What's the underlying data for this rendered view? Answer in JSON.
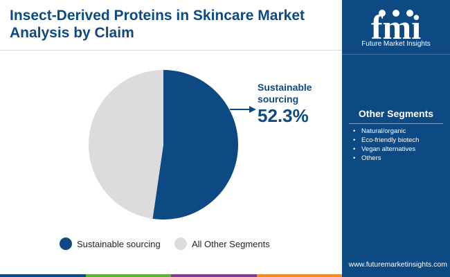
{
  "title": "Insect-Derived Proteins in Skincare Market Analysis by Claim",
  "brand": {
    "logo_text": "fmi",
    "tagline": "Future Market Insights",
    "url": "www.futuremarketinsights.com"
  },
  "other_segments": {
    "heading": "Other Segments",
    "items": [
      "Natural/organic",
      "Eco-friendly biotech",
      "Vegan alternatives",
      "Others"
    ]
  },
  "chart_data": {
    "type": "pie",
    "slices": [
      {
        "name": "Sustainable sourcing",
        "value": 52.3,
        "color": "#0d4a84"
      },
      {
        "name": "All Other Segments",
        "value": 47.7,
        "color": "#dcdcdc"
      }
    ],
    "callout": {
      "label": "Sustainable sourcing",
      "value": "52.3%"
    },
    "legend": [
      "Sustainable sourcing",
      "All Other Segments"
    ],
    "legend_position": "bottom"
  },
  "colors": {
    "brand_blue": "#0d4a84",
    "other_gray": "#dcdcdc",
    "bar": [
      "#0d4a84",
      "#5fae3e",
      "#7c3d8f",
      "#f28c28"
    ]
  }
}
